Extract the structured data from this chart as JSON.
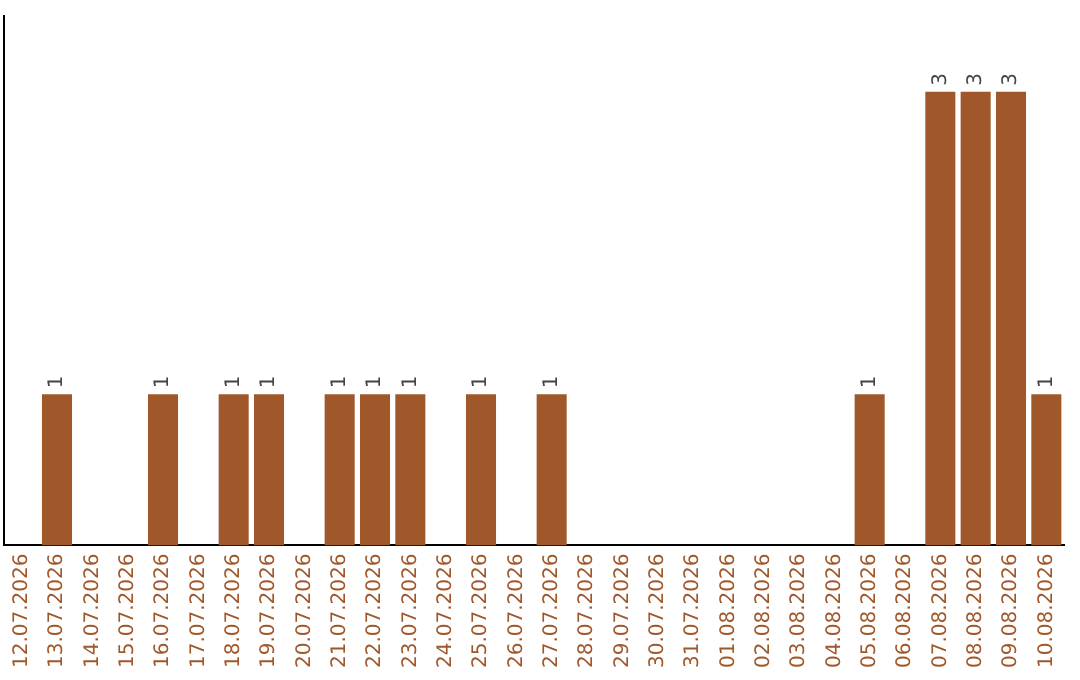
{
  "chart_data": {
    "type": "bar",
    "categories": [
      "12.07.2026",
      "13.07.2026",
      "14.07.2026",
      "15.07.2026",
      "16.07.2026",
      "17.07.2026",
      "18.07.2026",
      "19.07.2026",
      "20.07.2026",
      "21.07.2026",
      "22.07.2026",
      "23.07.2026",
      "24.07.2026",
      "25.07.2026",
      "26.07.2026",
      "27.07.2026",
      "28.07.2026",
      "29.07.2026",
      "30.07.2026",
      "31.07.2026",
      "01.08.2026",
      "02.08.2026",
      "03.08.2026",
      "04.08.2026",
      "05.08.2026",
      "06.08.2026",
      "07.08.2026",
      "08.08.2026",
      "09.08.2026",
      "10.08.2026"
    ],
    "values": [
      null,
      1,
      null,
      null,
      1,
      null,
      1,
      1,
      null,
      1,
      1,
      1,
      null,
      1,
      null,
      1,
      null,
      null,
      null,
      null,
      null,
      null,
      null,
      null,
      1,
      null,
      3,
      3,
      3,
      1
    ],
    "color": "#a0572a",
    "data_labels": true,
    "tick_labels": "x",
    "grid": false,
    "legend": false
  }
}
